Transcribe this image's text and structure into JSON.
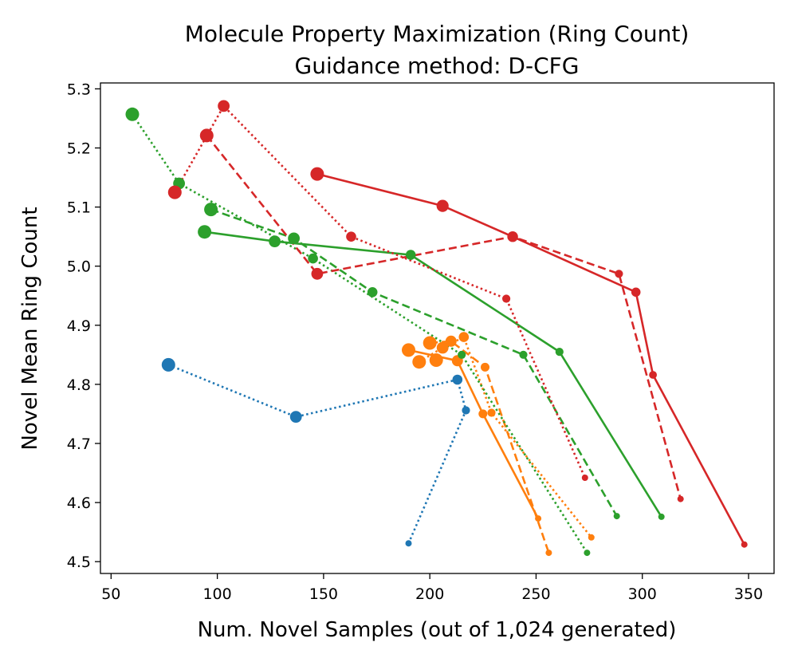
{
  "chart_data": {
    "type": "line",
    "title_line1": "Molecule Property Maximization (Ring Count)",
    "title_line2": "Guidance method: D-CFG",
    "xlabel": "Num. Novel Samples (out of 1,024 generated)",
    "ylabel": "Novel Mean Ring Count",
    "xlim": [
      45,
      362
    ],
    "ylim": [
      4.48,
      5.31
    ],
    "xticks": [
      50,
      100,
      150,
      200,
      250,
      300,
      350
    ],
    "yticks": [
      4.5,
      4.6,
      4.7,
      4.8,
      4.9,
      5.0,
      5.1,
      5.2,
      5.3
    ],
    "xtick_labels": [
      "50",
      "100",
      "150",
      "200",
      "250",
      "300",
      "350"
    ],
    "ytick_labels": [
      "4.5",
      "4.6",
      "4.7",
      "4.8",
      "4.9",
      "5.0",
      "5.1",
      "5.2",
      "5.3"
    ],
    "grid": false,
    "colors": {
      "blue": "#1f77b4",
      "orange": "#ff7f0e",
      "green": "#2ca02c",
      "red": "#d62728"
    },
    "series": [
      {
        "name": "blue-dotted",
        "color": "blue",
        "linestyle": "dotted",
        "x": [
          77,
          137,
          213,
          217,
          190
        ],
        "y": [
          4.833,
          4.745,
          4.808,
          4.756,
          4.531
        ]
      },
      {
        "name": "orange-solid",
        "color": "orange",
        "linestyle": "solid",
        "x": [
          190,
          213,
          225,
          251
        ],
        "y": [
          4.858,
          4.84,
          4.75,
          4.573
        ]
      },
      {
        "name": "orange-dashed",
        "color": "orange",
        "linestyle": "dashed",
        "x": [
          200,
          210,
          226,
          256
        ],
        "y": [
          4.87,
          4.873,
          4.829,
          4.515
        ]
      },
      {
        "name": "orange-dotted",
        "color": "orange",
        "linestyle": "dotted",
        "x": [
          195,
          206,
          216,
          229,
          276
        ],
        "y": [
          4.838,
          4.862,
          4.88,
          4.752,
          4.541
        ]
      },
      {
        "name": "orange-dotted-2",
        "color": "orange",
        "linestyle": "dotted",
        "x": [
          203
        ],
        "y": [
          4.841
        ]
      },
      {
        "name": "green-solid",
        "color": "green",
        "linestyle": "solid",
        "x": [
          94,
          127,
          191,
          261,
          309
        ],
        "y": [
          5.058,
          5.042,
          5.019,
          4.855,
          4.576
        ]
      },
      {
        "name": "green-dashed",
        "color": "green",
        "linestyle": "dashed",
        "x": [
          97,
          136,
          173,
          244,
          288
        ],
        "y": [
          5.096,
          5.047,
          4.956,
          4.85,
          4.577
        ]
      },
      {
        "name": "green-dotted",
        "color": "green",
        "linestyle": "dotted",
        "x": [
          60,
          82,
          145,
          215,
          274
        ],
        "y": [
          5.257,
          5.14,
          5.013,
          4.85,
          4.515
        ]
      },
      {
        "name": "red-solid",
        "color": "red",
        "linestyle": "solid",
        "x": [
          147,
          206,
          239,
          297,
          305,
          348
        ],
        "y": [
          5.156,
          5.102,
          5.05,
          4.956,
          4.816,
          4.529
        ]
      },
      {
        "name": "red-dashed",
        "color": "red",
        "linestyle": "dashed",
        "x": [
          95,
          147,
          239,
          289,
          318
        ],
        "y": [
          5.221,
          4.987,
          5.05,
          4.987,
          4.606
        ]
      },
      {
        "name": "red-dotted",
        "color": "red",
        "linestyle": "dotted",
        "x": [
          80,
          103,
          163,
          236,
          273
        ],
        "y": [
          5.125,
          5.271,
          5.05,
          4.945,
          4.642
        ]
      }
    ]
  }
}
